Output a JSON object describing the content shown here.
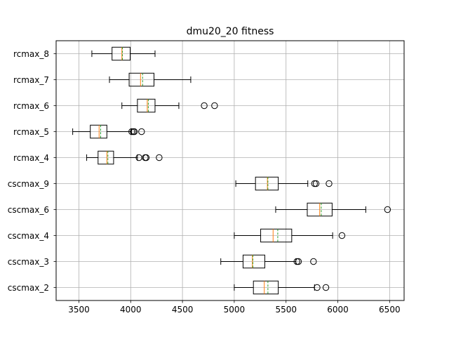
{
  "chart_data": {
    "type": "box",
    "orientation": "horizontal",
    "title": "dmu20_20 fitness",
    "xlabel": "",
    "ylabel": "",
    "xlim": [
      3280,
      6640
    ],
    "xticks": [
      3500,
      4000,
      4500,
      5000,
      5500,
      6000,
      6500
    ],
    "xtick_labels": [
      "3500",
      "4000",
      "4500",
      "5000",
      "5500",
      "6000",
      "6500"
    ],
    "grid": true,
    "colors": {
      "box": "#000000",
      "median": "#ff7f0e",
      "mean": "#2ca02c",
      "grid": "#b0b0b0",
      "flier": "#000000"
    },
    "categories": [
      "cscmax_2",
      "cscmax_3",
      "cscmax_4",
      "cscmax_6",
      "cscmax_9",
      "rcmax_4",
      "rcmax_5",
      "rcmax_6",
      "rcmax_7",
      "rcmax_8"
    ],
    "boxes": [
      {
        "label": "cscmax_2",
        "whisker_low": 5000,
        "q1": 5185,
        "median": 5290,
        "mean": 5325,
        "q3": 5425,
        "whisker_high": 5775,
        "fliers": [
          5800,
          5885
        ]
      },
      {
        "label": "cscmax_3",
        "whisker_low": 4870,
        "q1": 5085,
        "median": 5175,
        "mean": 5180,
        "q3": 5295,
        "whisker_high": 5595,
        "fliers": [
          5605,
          5620,
          5765
        ]
      },
      {
        "label": "cscmax_4",
        "whisker_low": 5000,
        "q1": 5255,
        "median": 5375,
        "mean": 5420,
        "q3": 5555,
        "whisker_high": 5950,
        "fliers": [
          6040
        ]
      },
      {
        "label": "cscmax_6",
        "whisker_low": 5400,
        "q1": 5705,
        "median": 5825,
        "mean": 5840,
        "q3": 5945,
        "whisker_high": 6270,
        "fliers": [
          6480
        ]
      },
      {
        "label": "cscmax_9",
        "whisker_low": 5015,
        "q1": 5205,
        "median": 5320,
        "mean": 5325,
        "q3": 5425,
        "whisker_high": 5710,
        "fliers": [
          5775,
          5790,
          5915
        ]
      },
      {
        "label": "rcmax_4",
        "whisker_low": 3575,
        "q1": 3685,
        "median": 3770,
        "mean": 3780,
        "q3": 3835,
        "whisker_high": 4065,
        "fliers": [
          4080,
          4140,
          4150,
          4275
        ]
      },
      {
        "label": "rcmax_5",
        "whisker_low": 3440,
        "q1": 3610,
        "median": 3695,
        "mean": 3710,
        "q3": 3770,
        "whisker_high": 4005,
        "fliers": [
          4010,
          4025,
          4035,
          4105
        ]
      },
      {
        "label": "rcmax_6",
        "whisker_low": 3915,
        "q1": 4065,
        "median": 4160,
        "mean": 4170,
        "q3": 4235,
        "whisker_high": 4465,
        "fliers": [
          4710,
          4810
        ]
      },
      {
        "label": "rcmax_7",
        "whisker_low": 3795,
        "q1": 3985,
        "median": 4095,
        "mean": 4115,
        "q3": 4225,
        "whisker_high": 4580,
        "fliers": []
      },
      {
        "label": "rcmax_8",
        "whisker_low": 3625,
        "q1": 3820,
        "median": 3915,
        "mean": 3920,
        "q3": 3995,
        "whisker_high": 4235,
        "fliers": []
      }
    ]
  }
}
